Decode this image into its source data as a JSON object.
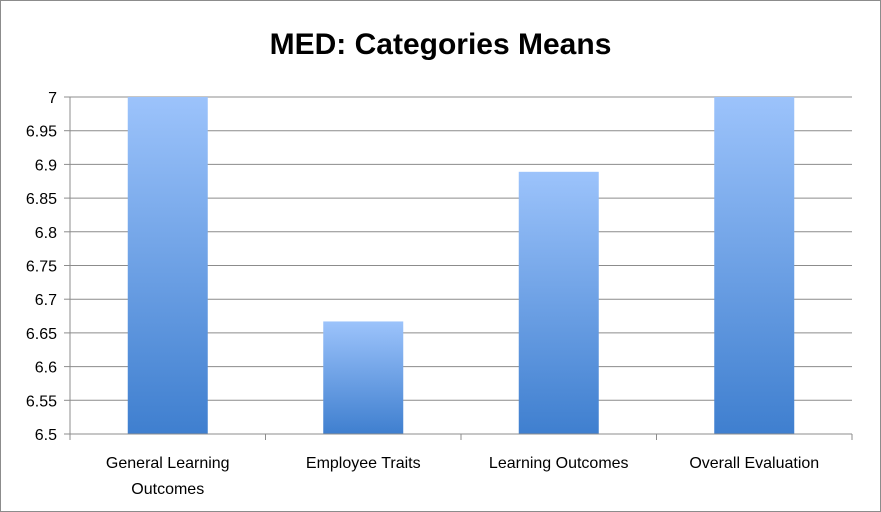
{
  "chart_data": {
    "type": "bar",
    "title": "MED: Categories Means",
    "xlabel": "",
    "ylabel": "",
    "ylim": [
      6.5,
      7
    ],
    "yticks": [
      "6.5",
      "6.55",
      "6.6",
      "6.65",
      "6.7",
      "6.75",
      "6.8",
      "6.85",
      "6.9",
      "6.95",
      "7"
    ],
    "categories": [
      "General Learning Outcomes",
      "Employee Traits",
      "Learning Outcomes",
      "Overall Evaluation"
    ],
    "category_lines": [
      [
        "General Learning",
        "Outcomes"
      ],
      [
        "Employee Traits"
      ],
      [
        "Learning Outcomes"
      ],
      [
        "Overall Evaluation"
      ]
    ],
    "values": [
      7.0,
      6.667,
      6.889,
      7.0
    ],
    "grid": true,
    "legend": "none",
    "colors": {
      "bar_top": "#9cc3fb",
      "bar_bottom": "#3f7fcf",
      "grid": "#8c8c8c"
    }
  }
}
